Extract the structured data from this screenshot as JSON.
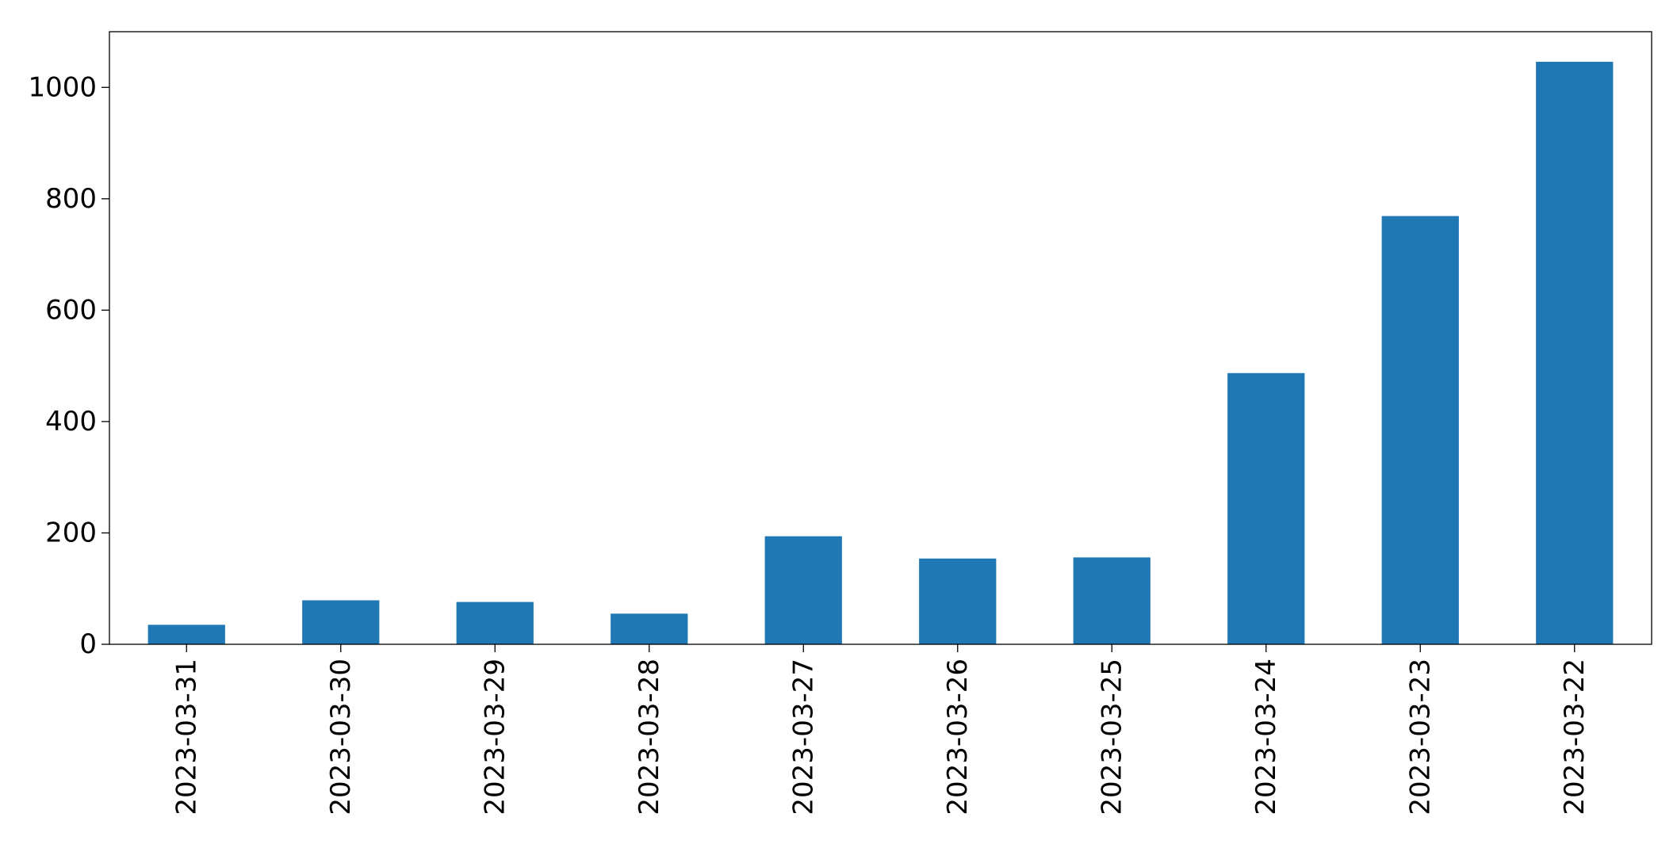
{
  "chart_data": {
    "type": "bar",
    "title": "",
    "xlabel": "",
    "ylabel": "",
    "categories": [
      "2023-03-31",
      "2023-03-30",
      "2023-03-29",
      "2023-03-28",
      "2023-03-27",
      "2023-03-26",
      "2023-03-25",
      "2023-03-24",
      "2023-03-23",
      "2023-03-22"
    ],
    "values": [
      35,
      79,
      76,
      55,
      194,
      154,
      156,
      487,
      769,
      1046
    ],
    "ylim": [
      0,
      1100
    ],
    "yticks": [
      0,
      200,
      400,
      600,
      800,
      1000
    ],
    "bar_color": "#1f77b4",
    "grid": false,
    "legend": "none"
  }
}
